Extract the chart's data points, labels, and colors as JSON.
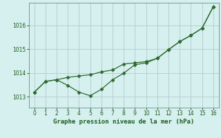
{
  "line1_x": [
    0,
    1,
    2,
    3,
    4,
    5,
    6,
    7,
    8,
    9,
    10,
    11,
    12,
    13,
    14,
    15,
    16
  ],
  "line1_y": [
    1013.2,
    1013.65,
    1013.72,
    1013.82,
    1013.88,
    1013.93,
    1014.05,
    1014.13,
    1014.38,
    1014.43,
    1014.48,
    1014.62,
    1014.98,
    1015.32,
    1015.58,
    1015.88,
    1016.78
  ],
  "line2_x": [
    0,
    1,
    2,
    3,
    4,
    5,
    6,
    7,
    8,
    9,
    10,
    11,
    12,
    13,
    14,
    15,
    16
  ],
  "line2_y": [
    1013.2,
    1013.65,
    1013.72,
    1013.48,
    1013.2,
    1013.05,
    1013.32,
    1013.72,
    1014.0,
    1014.35,
    1014.43,
    1014.62,
    1014.98,
    1015.32,
    1015.58,
    1015.88,
    1016.78
  ],
  "line_color": "#2d6a2d",
  "bg_color": "#d6efef",
  "grid_color": "#b0cccc",
  "xlabel": "Graphe pression niveau de la mer (hPa)",
  "xlabel_color": "#1a5c1a",
  "tick_color": "#1a5c1a",
  "ylim": [
    1012.55,
    1016.95
  ],
  "yticks": [
    1013,
    1014,
    1015,
    1016
  ],
  "xlim": [
    -0.5,
    16.5
  ],
  "xticks": [
    0,
    1,
    2,
    3,
    4,
    5,
    6,
    7,
    8,
    9,
    10,
    11,
    12,
    13,
    14,
    15,
    16
  ]
}
